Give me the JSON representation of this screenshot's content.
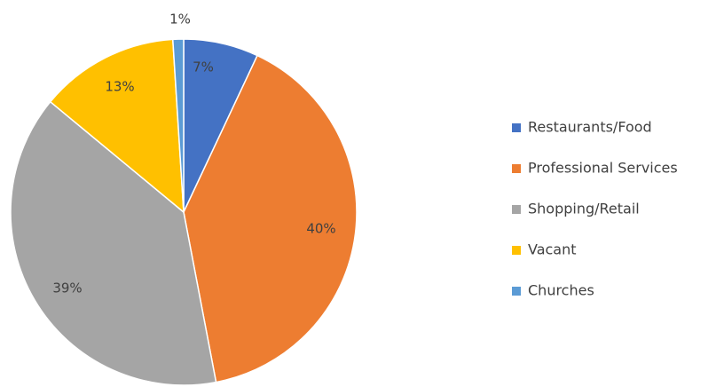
{
  "chart_data": {
    "type": "pie",
    "title": "",
    "legend_position": "right",
    "slices": [
      {
        "label": "Restaurants/Food",
        "value": 7,
        "value_label": "7%",
        "color": "#4472C4"
      },
      {
        "label": "Professional Services",
        "value": 40,
        "value_label": "40%",
        "color": "#ED7D31"
      },
      {
        "label": "Shopping/Retail",
        "value": 39,
        "value_label": "39%",
        "color": "#A5A5A5"
      },
      {
        "label": "Vacant",
        "value": 13,
        "value_label": "13%",
        "color": "#FFC000"
      },
      {
        "label": "Churches",
        "value": 1,
        "value_label": "1%",
        "color": "#5B9BD5"
      }
    ]
  }
}
